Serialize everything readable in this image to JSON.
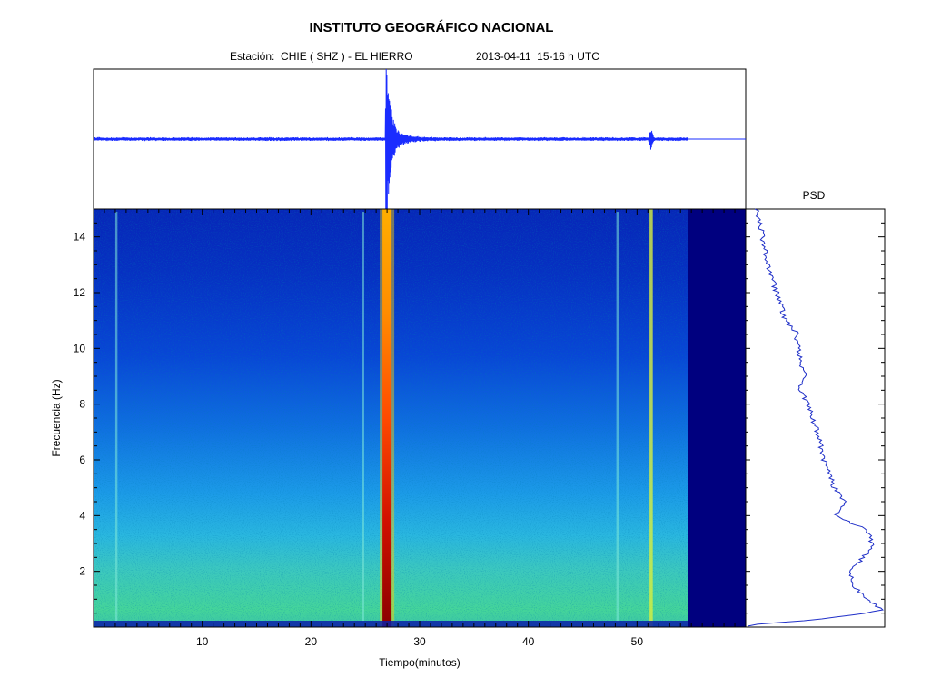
{
  "header": {
    "title": "INSTITUTO GEOGRÁFICO NACIONAL",
    "station": "Estación:  CHIE ( SHZ ) - EL HIERRO",
    "datetime": "2013-04-11  15-16 h UTC"
  },
  "chart_data": [
    {
      "type": "line",
      "panel": "seismogram",
      "xlim": [
        0,
        60
      ],
      "events": [
        {
          "t": 27.0,
          "type": "earthquake"
        },
        {
          "t": 51.3,
          "type": "small-event"
        }
      ],
      "data_end": 54.7
    },
    {
      "type": "heatmap",
      "panel": "spectrogram",
      "xlabel": "Tiempo(minutos)",
      "ylabel": "Frecuencia  (Hz)",
      "xlim": [
        0,
        60
      ],
      "ylim": [
        0,
        15
      ],
      "xticks": [
        10,
        20,
        30,
        40,
        50
      ],
      "yticks": [
        2,
        4,
        6,
        8,
        10,
        12,
        14
      ],
      "colormap": "jet",
      "events": [
        27.0,
        51.3
      ],
      "transient_lines": [
        2.1,
        24.8,
        48.2
      ],
      "data_end": 54.7,
      "no_data_color": "#00007f"
    },
    {
      "type": "line",
      "panel": "psd",
      "title": "PSD",
      "ylim": [
        0,
        15
      ],
      "freq": [
        0.1,
        0.3,
        0.6,
        1.0,
        1.5,
        2.0,
        2.5,
        3.0,
        3.5,
        4.0,
        4.5,
        5.0,
        6.0,
        7.0,
        8.0,
        8.6,
        9.0,
        9.5,
        10.0,
        10.6,
        11.0,
        12.0,
        13.0,
        14.0,
        15.0
      ],
      "level": [
        0.04,
        0.55,
        1.0,
        0.88,
        0.77,
        0.74,
        0.85,
        0.92,
        0.87,
        0.63,
        0.7,
        0.62,
        0.54,
        0.49,
        0.41,
        0.35,
        0.4,
        0.36,
        0.34,
        0.32,
        0.24,
        0.17,
        0.1,
        0.06,
        0.02
      ]
    }
  ]
}
